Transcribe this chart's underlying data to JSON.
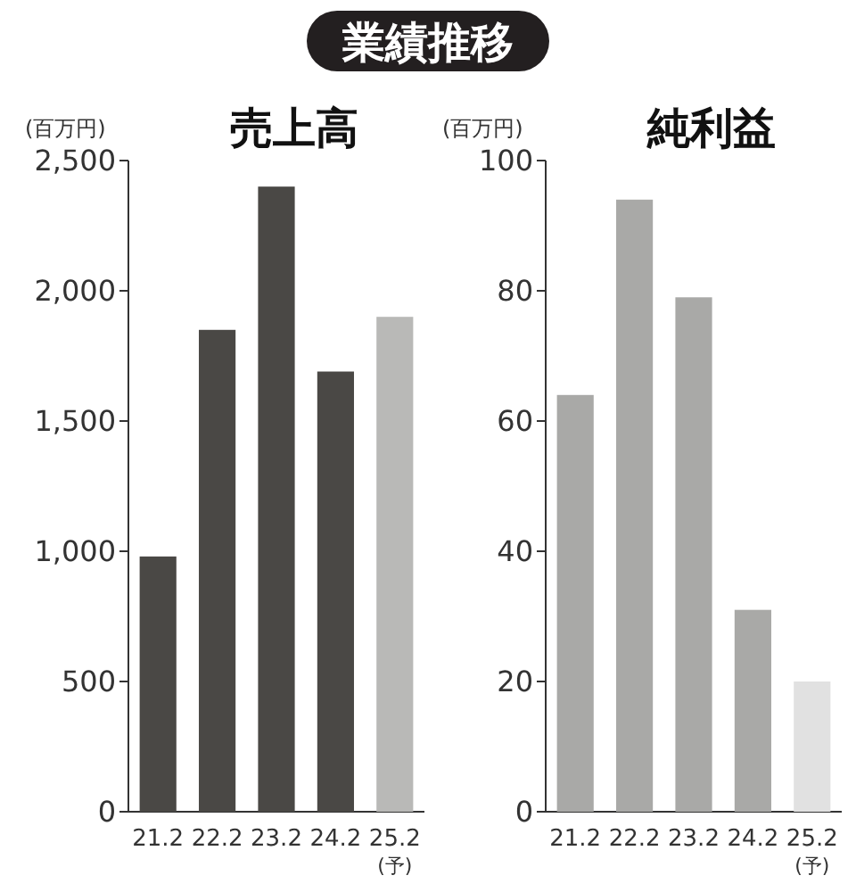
{
  "chart_data": [
    {
      "type": "bar",
      "title": "売上高",
      "ylabel": "(百万円)",
      "annotations": [
        "業績推移"
      ],
      "categories": [
        "21.2",
        "22.2",
        "23.2",
        "24.2",
        "25.2 (予)"
      ],
      "values": [
        980,
        1850,
        2400,
        1690,
        1900
      ],
      "colors": [
        "#4a4845",
        "#4a4845",
        "#4a4845",
        "#4a4845",
        "#b9b9b7"
      ],
      "ylim": [
        0,
        2500
      ],
      "yticks": [
        0,
        {
          "value": 500,
          "label": "500"
        },
        {
          "value": 1000,
          "label": "1,000"
        },
        {
          "value": 1500,
          "label": "1,500"
        },
        {
          "value": 2000,
          "label": "2,000"
        },
        {
          "value": 2500,
          "label": "2,500"
        }
      ]
    },
    {
      "type": "bar",
      "title": "純利益",
      "ylabel": "(百万円)",
      "categories": [
        "21.2",
        "22.2",
        "23.2",
        "24.2",
        "25.2 (予)"
      ],
      "values": [
        64,
        94,
        79,
        31,
        20
      ],
      "colors": [
        "#a9a9a7",
        "#a9a9a7",
        "#a9a9a7",
        "#a9a9a7",
        "#e1e1e1"
      ],
      "ylim": [
        0,
        100
      ],
      "yticks": [
        0,
        20,
        40,
        60,
        80,
        100
      ]
    }
  ]
}
